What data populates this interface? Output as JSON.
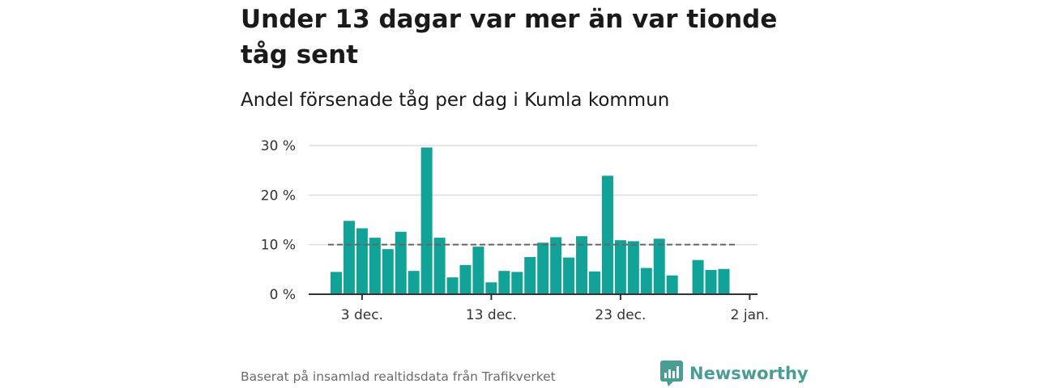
{
  "title": "Under 13 dagar var mer än var tionde tåg sent",
  "subtitle": "Andel försenade tåg per dag i Kumla kommun",
  "footer": {
    "source": "Baserat på insamlad realtidsdata från Trafikverket",
    "brand": "Newsworthy"
  },
  "colors": {
    "bar": "#11a398",
    "reference_line": "#666666",
    "grid": "#dddddd",
    "axis": "#333333",
    "brand": "#4a9d95"
  },
  "chart_data": {
    "type": "bar",
    "title": "Andel försenade tåg per dag i Kumla kommun",
    "xlabel": "",
    "ylabel": "",
    "x": [
      "2024-12-01",
      "2024-12-02",
      "2024-12-03",
      "2024-12-04",
      "2024-12-05",
      "2024-12-06",
      "2024-12-07",
      "2024-12-08",
      "2024-12-09",
      "2024-12-10",
      "2024-12-11",
      "2024-12-12",
      "2024-12-13",
      "2024-12-14",
      "2024-12-15",
      "2024-12-16",
      "2024-12-17",
      "2024-12-18",
      "2024-12-19",
      "2024-12-20",
      "2024-12-21",
      "2024-12-22",
      "2024-12-23",
      "2024-12-24",
      "2024-12-25",
      "2024-12-26",
      "2024-12-27",
      "2024-12-28",
      "2024-12-29",
      "2024-12-30",
      "2024-12-31"
    ],
    "values": [
      4.5,
      14.8,
      13.3,
      11.4,
      9.1,
      12.6,
      4.7,
      29.6,
      11.4,
      3.4,
      5.9,
      9.6,
      2.4,
      4.7,
      4.5,
      7.5,
      10.4,
      11.5,
      7.4,
      11.7,
      4.6,
      23.9,
      10.9,
      10.7,
      5.3,
      11.2,
      3.8,
      0,
      6.9,
      4.9,
      5.1
    ],
    "reference_line": 10,
    "xticks": [
      {
        "date": "2024-12-03",
        "label": "3 dec."
      },
      {
        "date": "2024-12-13",
        "label": "13 dec."
      },
      {
        "date": "2024-12-23",
        "label": "23 dec."
      },
      {
        "date": "2025-01-02",
        "label": "2 jan."
      }
    ],
    "yticks": [
      0,
      10,
      20,
      30
    ],
    "ytick_labels": [
      "0 %",
      "10 %",
      "20 %",
      "30 %"
    ],
    "ylim": [
      0,
      30
    ],
    "grid": true
  }
}
